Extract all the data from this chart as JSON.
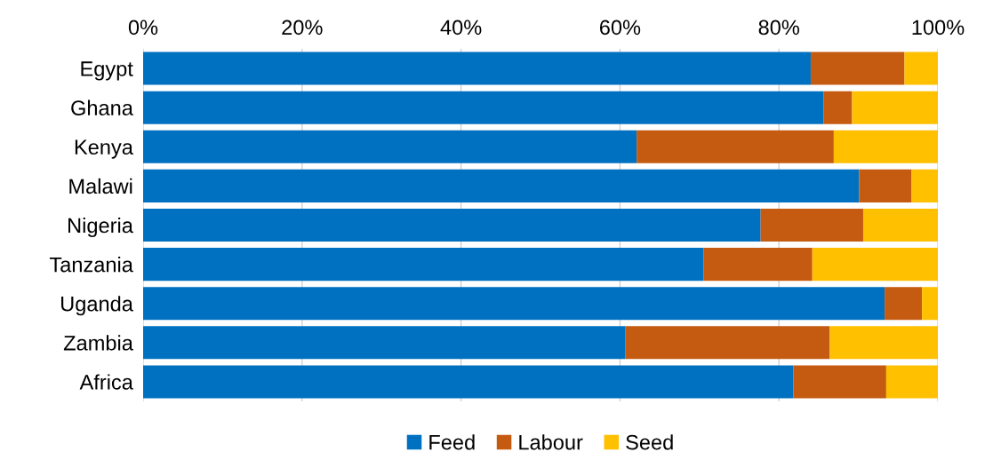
{
  "chart_data": {
    "type": "bar",
    "orientation": "horizontal",
    "stacked": true,
    "categories": [
      "Egypt",
      "Ghana",
      "Kenya",
      "Malawi",
      "Nigeria",
      "Tanzania",
      "Uganda",
      "Zambia",
      "Africa"
    ],
    "series": [
      {
        "name": "Feed",
        "color": "#0070c0",
        "values": [
          84.0,
          85.6,
          62.1,
          90.1,
          77.7,
          70.5,
          93.3,
          60.7,
          81.8
        ]
      },
      {
        "name": "Labour",
        "color": "#c55a11",
        "values": [
          11.8,
          3.6,
          24.8,
          6.6,
          12.9,
          13.7,
          4.7,
          25.7,
          11.7
        ]
      },
      {
        "name": "Seed",
        "color": "#ffc000",
        "values": [
          4.2,
          10.8,
          13.1,
          3.3,
          9.4,
          15.8,
          2.0,
          13.6,
          6.5
        ]
      }
    ],
    "xlim": [
      0,
      100
    ],
    "xticks": [
      {
        "value": 0,
        "label": "0%"
      },
      {
        "value": 20,
        "label": "20%"
      },
      {
        "value": 40,
        "label": "40%"
      },
      {
        "value": 60,
        "label": "60%"
      },
      {
        "value": 80,
        "label": "80%"
      },
      {
        "value": 100,
        "label": "100%"
      }
    ],
    "grid": "x",
    "legend": "bottom"
  }
}
